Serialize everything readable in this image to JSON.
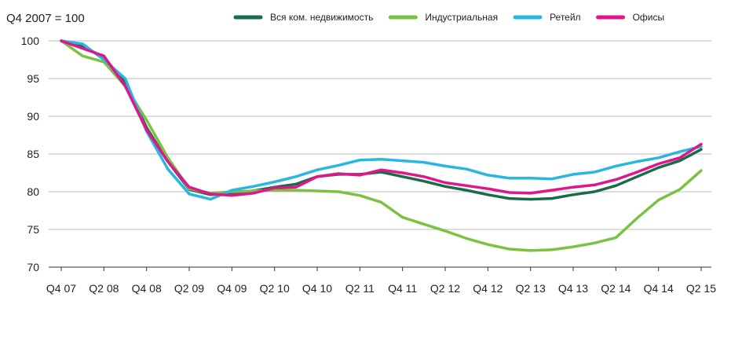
{
  "chart_data": {
    "type": "line",
    "ylabel": "Q4 2007 = 100",
    "ylim": [
      70,
      100
    ],
    "yticks": [
      70,
      75,
      80,
      85,
      90,
      95,
      100
    ],
    "grid": true,
    "legend_position": "top",
    "x": [
      "Q4 07",
      "Q1 08",
      "Q2 08",
      "Q3 08",
      "Q4 08",
      "Q1 09",
      "Q2 09",
      "Q3 09",
      "Q4 09",
      "Q1 10",
      "Q2 10",
      "Q3 10",
      "Q4 10",
      "Q1 11",
      "Q2 11",
      "Q3 11",
      "Q4 11",
      "Q1 12",
      "Q2 12",
      "Q3 12",
      "Q4 12",
      "Q1 13",
      "Q2 13",
      "Q3 13",
      "Q4 13",
      "Q1 14",
      "Q2 14",
      "Q3 14",
      "Q4 14",
      "Q1 15",
      "Q2 15"
    ],
    "xtick_labels": [
      "Q4 07",
      "Q2 08",
      "Q4 08",
      "Q2 09",
      "Q4 09",
      "Q2 10",
      "Q4 10",
      "Q2 11",
      "Q4 11",
      "Q2 12",
      "Q4 12",
      "Q2 13",
      "Q4 13",
      "Q2 14",
      "Q4 14",
      "Q2 15"
    ],
    "series": [
      {
        "name": "Вся ком. недвижимость",
        "color": "#1a6b4a",
        "values": [
          100,
          99.3,
          97.8,
          94.5,
          88.5,
          84.0,
          80.3,
          79.6,
          79.8,
          80.1,
          80.6,
          81.0,
          82.0,
          82.3,
          82.3,
          82.6,
          82.0,
          81.4,
          80.7,
          80.2,
          79.6,
          79.1,
          79.0,
          79.1,
          79.6,
          80.0,
          80.8,
          82.0,
          83.2,
          84.1,
          85.6
        ]
      },
      {
        "name": "Индустриальная",
        "color": "#7cc242",
        "values": [
          100,
          98.0,
          97.2,
          94.0,
          89.5,
          84.5,
          80.4,
          79.8,
          80.0,
          80.1,
          80.2,
          80.2,
          80.1,
          80.0,
          79.5,
          78.6,
          76.6,
          75.7,
          74.8,
          73.8,
          73.0,
          72.4,
          72.2,
          72.3,
          72.7,
          73.2,
          73.9,
          76.5,
          78.9,
          80.3,
          82.8
        ]
      },
      {
        "name": "Ретейл",
        "color": "#29b6e0",
        "values": [
          100,
          99.6,
          97.5,
          95.0,
          88.0,
          83.0,
          79.7,
          79.0,
          80.2,
          80.7,
          81.3,
          82.0,
          82.9,
          83.5,
          84.2,
          84.3,
          84.1,
          83.9,
          83.4,
          83.0,
          82.2,
          81.8,
          81.8,
          81.7,
          82.3,
          82.6,
          83.4,
          84.0,
          84.5,
          85.3,
          86.0
        ]
      },
      {
        "name": "Офисы",
        "color": "#e0168c",
        "values": [
          100,
          99.0,
          98.0,
          94.0,
          88.2,
          84.0,
          80.6,
          79.7,
          79.5,
          79.8,
          80.5,
          80.6,
          82.0,
          82.4,
          82.2,
          82.9,
          82.5,
          82.0,
          81.2,
          80.8,
          80.4,
          79.9,
          79.8,
          80.2,
          80.6,
          80.9,
          81.6,
          82.6,
          83.7,
          84.5,
          86.3
        ]
      }
    ]
  }
}
